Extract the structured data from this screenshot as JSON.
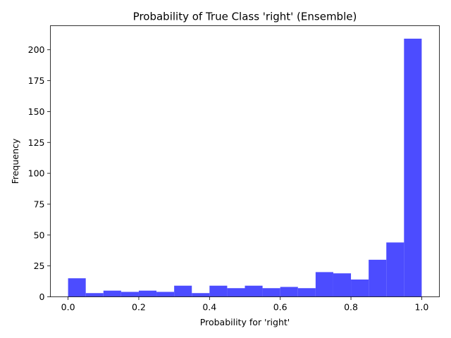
{
  "chart_data": {
    "type": "bar",
    "title": "Probability of True Class 'right' (Ensemble)",
    "xlabel": "Probability for 'right'",
    "ylabel": "Frequency",
    "xlim": [
      -0.05,
      1.05
    ],
    "ylim": [
      0,
      219.5
    ],
    "xticks": [
      0.0,
      0.2,
      0.4,
      0.6,
      0.8,
      1.0
    ],
    "xtick_labels": [
      "0.0",
      "0.2",
      "0.4",
      "0.6",
      "0.8",
      "1.0"
    ],
    "yticks": [
      0,
      25,
      50,
      75,
      100,
      125,
      150,
      175,
      200
    ],
    "ytick_labels": [
      "0",
      "25",
      "50",
      "75",
      "100",
      "125",
      "150",
      "175",
      "200"
    ],
    "bin_edges": [
      0.0,
      0.05,
      0.1,
      0.15,
      0.2,
      0.25,
      0.3,
      0.35,
      0.4,
      0.45,
      0.5,
      0.55,
      0.6,
      0.65,
      0.7,
      0.75,
      0.8,
      0.85,
      0.9,
      0.95,
      1.0
    ],
    "values": [
      15,
      3,
      5,
      4,
      5,
      4,
      9,
      3,
      9,
      7,
      9,
      7,
      8,
      7,
      20,
      19,
      14,
      30,
      44,
      209
    ],
    "bar_color": "#4c4cff",
    "grid": false,
    "legend": "none"
  }
}
